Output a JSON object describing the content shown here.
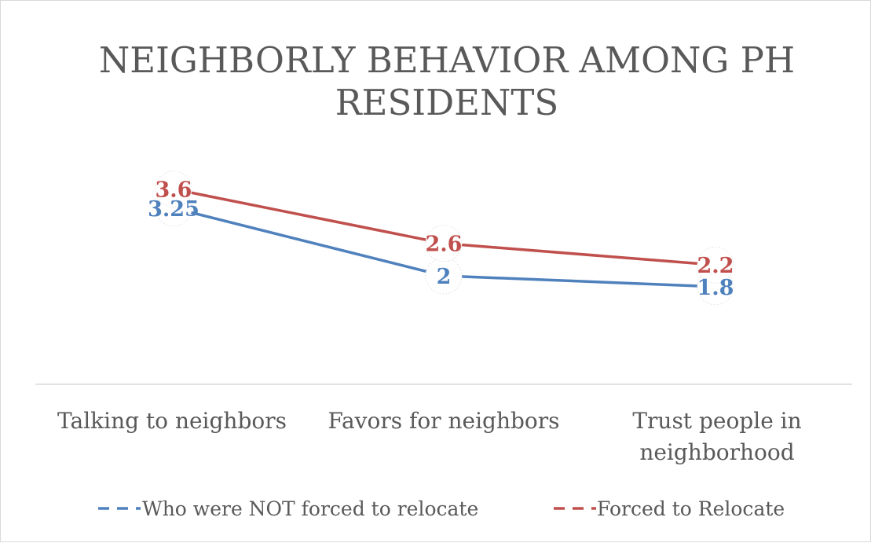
{
  "chart_data": {
    "type": "line",
    "title_lines": [
      "NEIGHBORLY BEHAVIOR AMONG PH",
      "RESIDENTS"
    ],
    "categories": [
      "Talking to neighbors",
      "Favors for neighbors",
      "Trust people in neighborhood"
    ],
    "category_lines": [
      [
        "Talking to neighbors"
      ],
      [
        "Favors for neighbors"
      ],
      [
        "Trust people in",
        "neighborhood"
      ]
    ],
    "series": [
      {
        "name": "Who were NOT forced to relocate",
        "values": [
          3.25,
          2,
          1.8
        ],
        "labels": [
          "3.25",
          "2",
          "1.8"
        ],
        "color": "#4f81bd"
      },
      {
        "name": "Forced to Relocate",
        "values": [
          3.6,
          2.6,
          2.2
        ],
        "labels": [
          "3.6",
          "2.6",
          "2.2"
        ],
        "color": "#c0504d"
      }
    ],
    "ylim": [
      0,
      4.9
    ],
    "xlabel": "",
    "ylabel": "",
    "grid": false,
    "legend_position": "bottom"
  }
}
